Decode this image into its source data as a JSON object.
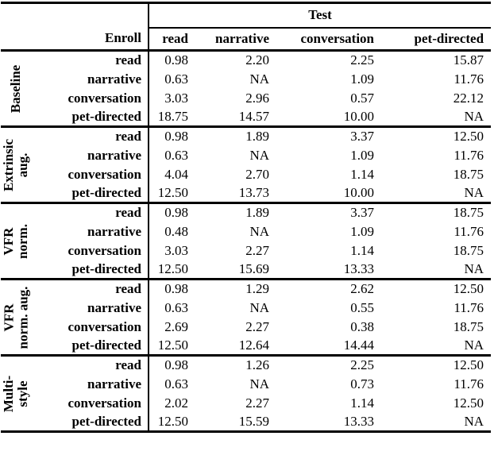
{
  "table": {
    "test_header": "Test",
    "enroll_header": "Enroll",
    "columns": [
      "read",
      "narrative",
      "conversation",
      "pet-directed"
    ],
    "groups": [
      {
        "label": "Baseline",
        "label_lines": [
          "Baseline"
        ],
        "rows": [
          {
            "label": "read",
            "values": [
              "0.98",
              "2.20",
              "2.25",
              "15.87"
            ]
          },
          {
            "label": "narrative",
            "values": [
              "0.63",
              "NA",
              "1.09",
              "11.76"
            ]
          },
          {
            "label": "conversation",
            "values": [
              "3.03",
              "2.96",
              "0.57",
              "22.12"
            ]
          },
          {
            "label": "pet-directed",
            "values": [
              "18.75",
              "14.57",
              "10.00",
              "NA"
            ]
          }
        ]
      },
      {
        "label": "Extrinsic aug.",
        "label_lines": [
          "Extrinsic",
          "aug."
        ],
        "rows": [
          {
            "label": "read",
            "values": [
              "0.98",
              "1.89",
              "3.37",
              "12.50"
            ]
          },
          {
            "label": "narrative",
            "values": [
              "0.63",
              "NA",
              "1.09",
              "11.76"
            ]
          },
          {
            "label": "conversation",
            "values": [
              "4.04",
              "2.70",
              "1.14",
              "18.75"
            ]
          },
          {
            "label": "pet-directed",
            "values": [
              "12.50",
              "13.73",
              "10.00",
              "NA"
            ]
          }
        ]
      },
      {
        "label": "VFR norm.",
        "label_lines": [
          "VFR",
          "norm."
        ],
        "rows": [
          {
            "label": "read",
            "values": [
              "0.98",
              "1.89",
              "3.37",
              "18.75"
            ]
          },
          {
            "label": "narrative",
            "values": [
              "0.48",
              "NA",
              "1.09",
              "11.76"
            ]
          },
          {
            "label": "conversation",
            "values": [
              "3.03",
              "2.27",
              "1.14",
              "18.75"
            ]
          },
          {
            "label": "pet-directed",
            "values": [
              "12.50",
              "15.69",
              "13.33",
              "NA"
            ]
          }
        ]
      },
      {
        "label": "VFR norm. aug.",
        "label_lines": [
          "VFR",
          "norm. aug."
        ],
        "rows": [
          {
            "label": "read",
            "values": [
              "0.98",
              "1.29",
              "2.62",
              "12.50"
            ]
          },
          {
            "label": "narrative",
            "values": [
              "0.63",
              "NA",
              "0.55",
              "11.76"
            ]
          },
          {
            "label": "conversation",
            "values": [
              "2.69",
              "2.27",
              "0.38",
              "18.75"
            ]
          },
          {
            "label": "pet-directed",
            "values": [
              "12.50",
              "12.64",
              "14.44",
              "NA"
            ]
          }
        ]
      },
      {
        "label": "Multi-style",
        "label_lines": [
          "Multi-",
          "style"
        ],
        "rows": [
          {
            "label": "read",
            "values": [
              "0.98",
              "1.26",
              "2.25",
              "12.50"
            ]
          },
          {
            "label": "narrative",
            "values": [
              "0.63",
              "NA",
              "0.73",
              "11.76"
            ]
          },
          {
            "label": "conversation",
            "values": [
              "2.02",
              "2.27",
              "1.14",
              "12.50"
            ]
          },
          {
            "label": "pet-directed",
            "values": [
              "12.50",
              "15.59",
              "13.33",
              "NA"
            ]
          }
        ]
      }
    ]
  },
  "chart_data": {
    "type": "table",
    "column_group_header": "Test",
    "row_group_header": "Enroll",
    "columns": [
      "read",
      "narrative",
      "conversation",
      "pet-directed"
    ],
    "groups": [
      {
        "name": "Baseline",
        "rows": [
          {
            "enroll": "read",
            "values": [
              0.98,
              2.2,
              2.25,
              15.87
            ]
          },
          {
            "enroll": "narrative",
            "values": [
              0.63,
              "NA",
              1.09,
              11.76
            ]
          },
          {
            "enroll": "conversation",
            "values": [
              3.03,
              2.96,
              0.57,
              22.12
            ]
          },
          {
            "enroll": "pet-directed",
            "values": [
              18.75,
              14.57,
              10.0,
              "NA"
            ]
          }
        ]
      },
      {
        "name": "Extrinsic aug.",
        "rows": [
          {
            "enroll": "read",
            "values": [
              0.98,
              1.89,
              3.37,
              12.5
            ]
          },
          {
            "enroll": "narrative",
            "values": [
              0.63,
              "NA",
              1.09,
              11.76
            ]
          },
          {
            "enroll": "conversation",
            "values": [
              4.04,
              2.7,
              1.14,
              18.75
            ]
          },
          {
            "enroll": "pet-directed",
            "values": [
              12.5,
              13.73,
              10.0,
              "NA"
            ]
          }
        ]
      },
      {
        "name": "VFR norm.",
        "rows": [
          {
            "enroll": "read",
            "values": [
              0.98,
              1.89,
              3.37,
              18.75
            ]
          },
          {
            "enroll": "narrative",
            "values": [
              0.48,
              "NA",
              1.09,
              11.76
            ]
          },
          {
            "enroll": "conversation",
            "values": [
              3.03,
              2.27,
              1.14,
              18.75
            ]
          },
          {
            "enroll": "pet-directed",
            "values": [
              12.5,
              15.69,
              13.33,
              "NA"
            ]
          }
        ]
      },
      {
        "name": "VFR norm. aug.",
        "rows": [
          {
            "enroll": "read",
            "values": [
              0.98,
              1.29,
              2.62,
              12.5
            ]
          },
          {
            "enroll": "narrative",
            "values": [
              0.63,
              "NA",
              0.55,
              11.76
            ]
          },
          {
            "enroll": "conversation",
            "values": [
              2.69,
              2.27,
              0.38,
              18.75
            ]
          },
          {
            "enroll": "pet-directed",
            "values": [
              12.5,
              12.64,
              14.44,
              "NA"
            ]
          }
        ]
      },
      {
        "name": "Multi-style",
        "rows": [
          {
            "enroll": "read",
            "values": [
              0.98,
              1.26,
              2.25,
              12.5
            ]
          },
          {
            "enroll": "narrative",
            "values": [
              0.63,
              "NA",
              0.73,
              11.76
            ]
          },
          {
            "enroll": "conversation",
            "values": [
              2.02,
              2.27,
              1.14,
              12.5
            ]
          },
          {
            "enroll": "pet-directed",
            "values": [
              12.5,
              15.59,
              13.33,
              "NA"
            ]
          }
        ]
      }
    ]
  }
}
